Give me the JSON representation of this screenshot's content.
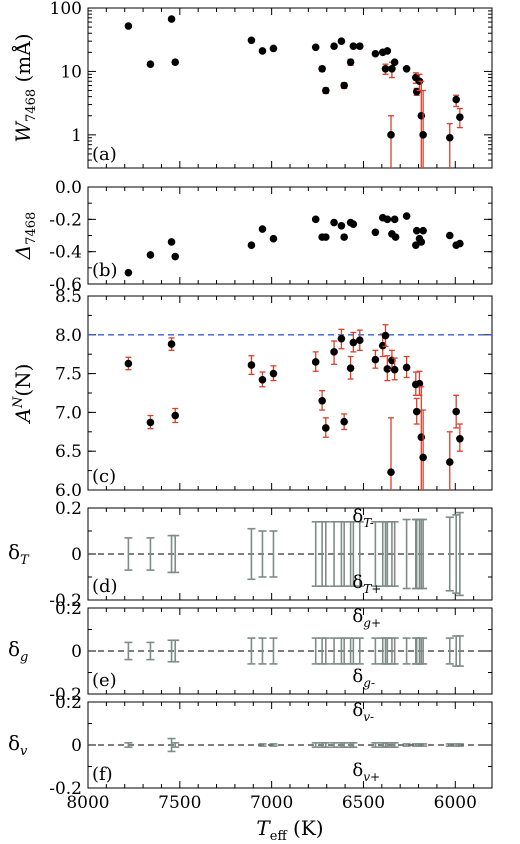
{
  "chart_data": {
    "type": "scatter",
    "figure": {
      "xlabel_main": "T",
      "xlabel_sub": "eff",
      "xlabel_unit": " (K)",
      "xlim": [
        8000,
        5800
      ],
      "x_ticks": [
        8000,
        7500,
        7000,
        6500,
        6000
      ]
    },
    "panels": [
      {
        "id": "a",
        "label": "(a)",
        "ylabel_main": "W",
        "ylabel_sub": "7468",
        "ylabel_unit": " (mÅ)",
        "scale": "log",
        "ylim": [
          0.3,
          100
        ],
        "y_ticks": [
          {
            "v": 1,
            "t": "1"
          },
          {
            "v": 10,
            "t": "10"
          },
          {
            "v": 100,
            "t": "100"
          }
        ],
        "points": [
          {
            "x": 7780,
            "y": 52
          },
          {
            "x": 7660,
            "y": 13,
            "ylo": 12,
            "yhi": 14
          },
          {
            "x": 7545,
            "y": 67
          },
          {
            "x": 7525,
            "y": 14,
            "ylo": 13,
            "yhi": 15
          },
          {
            "x": 7110,
            "y": 31
          },
          {
            "x": 7050,
            "y": 21
          },
          {
            "x": 6990,
            "y": 23
          },
          {
            "x": 6760,
            "y": 24
          },
          {
            "x": 6725,
            "y": 11,
            "ylo": 10,
            "yhi": 12
          },
          {
            "x": 6705,
            "y": 5.0,
            "ylo": 4.5,
            "yhi": 5.5
          },
          {
            "x": 6660,
            "y": 25
          },
          {
            "x": 6620,
            "y": 30
          },
          {
            "x": 6605,
            "y": 6.0,
            "ylo": 5.4,
            "yhi": 6.6
          },
          {
            "x": 6570,
            "y": 14,
            "ylo": 12.5,
            "yhi": 15.5
          },
          {
            "x": 6555,
            "y": 25
          },
          {
            "x": 6520,
            "y": 25,
            "ylo": 23,
            "yhi": 27
          },
          {
            "x": 6435,
            "y": 19
          },
          {
            "x": 6395,
            "y": 20
          },
          {
            "x": 6380,
            "y": 11,
            "ylo": 9,
            "yhi": 13
          },
          {
            "x": 6370,
            "y": 21
          },
          {
            "x": 6350,
            "y": 1.0,
            "ylo": 0.15,
            "yhi": 2
          },
          {
            "x": 6345,
            "y": 11,
            "ylo": 8,
            "yhi": 14
          },
          {
            "x": 6330,
            "y": 14
          },
          {
            "x": 6265,
            "y": 11
          },
          {
            "x": 6215,
            "y": 8,
            "ylo": 6.5,
            "yhi": 9.5
          },
          {
            "x": 6210,
            "y": 4.8,
            "ylo": 4.2,
            "yhi": 5.4
          },
          {
            "x": 6195,
            "y": 7,
            "ylo": 5,
            "yhi": 9
          },
          {
            "x": 6185,
            "y": 2.0,
            "ylo": 0.15,
            "yhi": 7
          },
          {
            "x": 6175,
            "y": 1.0,
            "ylo": 0.15,
            "yhi": 5
          },
          {
            "x": 6030,
            "y": 0.9,
            "ylo": 0.3,
            "yhi": 1.5
          },
          {
            "x": 5995,
            "y": 3.6,
            "ylo": 2.8,
            "yhi": 4.2
          },
          {
            "x": 5975,
            "y": 1.9,
            "ylo": 1.3,
            "yhi": 2.6
          }
        ]
      },
      {
        "id": "b",
        "label": "(b)",
        "ylabel_main": "Δ",
        "ylabel_sub": "7468",
        "ylabel_unit": "",
        "scale": "linear",
        "ylim": [
          -0.6,
          0.0
        ],
        "y_ticks": [
          {
            "v": -0.6,
            "t": "-0.6"
          },
          {
            "v": -0.4,
            "t": "-0.4"
          },
          {
            "v": -0.2,
            "t": "-0.2"
          },
          {
            "v": 0.0,
            "t": "0.0"
          }
        ],
        "points": [
          {
            "x": 7780,
            "y": -0.53
          },
          {
            "x": 7660,
            "y": -0.42
          },
          {
            "x": 7545,
            "y": -0.34
          },
          {
            "x": 7525,
            "y": -0.43
          },
          {
            "x": 7110,
            "y": -0.36
          },
          {
            "x": 7050,
            "y": -0.26
          },
          {
            "x": 6990,
            "y": -0.32
          },
          {
            "x": 6760,
            "y": -0.2
          },
          {
            "x": 6725,
            "y": -0.31
          },
          {
            "x": 6705,
            "y": -0.31
          },
          {
            "x": 6660,
            "y": -0.22
          },
          {
            "x": 6620,
            "y": -0.24
          },
          {
            "x": 6605,
            "y": -0.31
          },
          {
            "x": 6570,
            "y": -0.22
          },
          {
            "x": 6555,
            "y": -0.23
          },
          {
            "x": 6435,
            "y": -0.28
          },
          {
            "x": 6395,
            "y": -0.19
          },
          {
            "x": 6370,
            "y": -0.2
          },
          {
            "x": 6345,
            "y": -0.29
          },
          {
            "x": 6330,
            "y": -0.2
          },
          {
            "x": 6325,
            "y": -0.31
          },
          {
            "x": 6265,
            "y": -0.18
          },
          {
            "x": 6215,
            "y": -0.36
          },
          {
            "x": 6210,
            "y": -0.27
          },
          {
            "x": 6195,
            "y": -0.32
          },
          {
            "x": 6185,
            "y": -0.34
          },
          {
            "x": 6175,
            "y": -0.27
          },
          {
            "x": 6030,
            "y": -0.3
          },
          {
            "x": 5995,
            "y": -0.36
          },
          {
            "x": 5975,
            "y": -0.35
          }
        ]
      },
      {
        "id": "c",
        "label": "(c)",
        "ylabel_main": "A",
        "ylabel_sup": "N",
        "ylabel_unit": "(N)",
        "scale": "linear",
        "ylim": [
          6.0,
          8.5
        ],
        "reference_line": 8.0,
        "reference_color": "#3a5fd6",
        "y_ticks": [
          {
            "v": 6.0,
            "t": "6.0"
          },
          {
            "v": 6.5,
            "t": "6.5"
          },
          {
            "v": 7.0,
            "t": "7.0"
          },
          {
            "v": 7.5,
            "t": "7.5"
          },
          {
            "v": 8.0,
            "t": "8.0"
          },
          {
            "v": 8.5,
            "t": "8.5"
          }
        ],
        "points": [
          {
            "x": 7780,
            "y": 7.63,
            "ylo": 7.55,
            "yhi": 7.71
          },
          {
            "x": 7660,
            "y": 6.87,
            "ylo": 6.79,
            "yhi": 6.96
          },
          {
            "x": 7545,
            "y": 7.88,
            "ylo": 7.8,
            "yhi": 7.96
          },
          {
            "x": 7525,
            "y": 6.96,
            "ylo": 6.87,
            "yhi": 7.05
          },
          {
            "x": 7110,
            "y": 7.61,
            "ylo": 7.49,
            "yhi": 7.73
          },
          {
            "x": 7050,
            "y": 7.42,
            "ylo": 7.33,
            "yhi": 7.52
          },
          {
            "x": 6990,
            "y": 7.5,
            "ylo": 7.41,
            "yhi": 7.6
          },
          {
            "x": 6760,
            "y": 7.65,
            "ylo": 7.53,
            "yhi": 7.78
          },
          {
            "x": 6725,
            "y": 7.15,
            "ylo": 7.03,
            "yhi": 7.28
          },
          {
            "x": 6705,
            "y": 6.8,
            "ylo": 6.68,
            "yhi": 6.93
          },
          {
            "x": 6660,
            "y": 7.78,
            "ylo": 7.62,
            "yhi": 7.92
          },
          {
            "x": 6620,
            "y": 7.95,
            "ylo": 7.82,
            "yhi": 8.07
          },
          {
            "x": 6605,
            "y": 6.88,
            "ylo": 6.78,
            "yhi": 6.98
          },
          {
            "x": 6570,
            "y": 7.57,
            "ylo": 7.43,
            "yhi": 7.72
          },
          {
            "x": 6555,
            "y": 7.9,
            "ylo": 7.78,
            "yhi": 8.03
          },
          {
            "x": 6520,
            "y": 7.93,
            "ylo": 7.8,
            "yhi": 8.06
          },
          {
            "x": 6435,
            "y": 7.68,
            "ylo": 7.57,
            "yhi": 7.8
          },
          {
            "x": 6395,
            "y": 7.86,
            "ylo": 7.72,
            "yhi": 8.01
          },
          {
            "x": 6380,
            "y": 7.99,
            "ylo": 7.85,
            "yhi": 8.13
          },
          {
            "x": 6370,
            "y": 7.56,
            "ylo": 7.41,
            "yhi": 7.73
          },
          {
            "x": 6350,
            "y": 6.23,
            "ylo": 6.0,
            "yhi": 6.93
          },
          {
            "x": 6345,
            "y": 7.67,
            "ylo": 7.55,
            "yhi": 7.8
          },
          {
            "x": 6330,
            "y": 7.55,
            "ylo": 7.42,
            "yhi": 7.7
          },
          {
            "x": 6265,
            "y": 7.58,
            "ylo": 7.45,
            "yhi": 7.72
          },
          {
            "x": 6215,
            "y": 7.36,
            "ylo": 7.22,
            "yhi": 7.52
          },
          {
            "x": 6210,
            "y": 7.01,
            "ylo": 6.85,
            "yhi": 7.18
          },
          {
            "x": 6195,
            "y": 7.37,
            "ylo": 7.22,
            "yhi": 7.53
          },
          {
            "x": 6185,
            "y": 6.68,
            "ylo": 6.0,
            "yhi": 7.33
          },
          {
            "x": 6175,
            "y": 6.42,
            "ylo": 6.0,
            "yhi": 7.03
          },
          {
            "x": 6030,
            "y": 6.36,
            "ylo": 6.0,
            "yhi": 6.75
          },
          {
            "x": 5995,
            "y": 7.01,
            "ylo": 6.8,
            "yhi": 7.22
          },
          {
            "x": 5975,
            "y": 6.66,
            "ylo": 6.5,
            "yhi": 6.85
          }
        ]
      },
      {
        "id": "d",
        "label": "(d)",
        "ylabel_main": "δ",
        "ylabel_sub": "T",
        "scale": "linear",
        "ylim": [
          -0.2,
          0.2
        ],
        "y_ticks": [
          {
            "v": -0.2,
            "t": "-0.2"
          },
          {
            "v": 0,
            "t": "0"
          },
          {
            "v": 0.2,
            "t": "0.2"
          }
        ],
        "annot_upper": {
          "main": "δ",
          "sub": "T-"
        },
        "annot_lower": {
          "main": "δ",
          "sub": "T+"
        },
        "ranges": [
          {
            "x": 7780,
            "h": 0.07
          },
          {
            "x": 7660,
            "h": 0.07
          },
          {
            "x": 7545,
            "h": 0.08
          },
          {
            "x": 7525,
            "h": 0.08
          },
          {
            "x": 7110,
            "h": 0.11
          },
          {
            "x": 7050,
            "h": 0.1
          },
          {
            "x": 6990,
            "h": 0.1
          },
          {
            "x": 6760,
            "h": 0.14
          },
          {
            "x": 6725,
            "h": 0.14
          },
          {
            "x": 6705,
            "h": 0.14
          },
          {
            "x": 6660,
            "h": 0.14
          },
          {
            "x": 6620,
            "h": 0.14
          },
          {
            "x": 6605,
            "h": 0.14
          },
          {
            "x": 6570,
            "h": 0.14
          },
          {
            "x": 6555,
            "h": 0.14
          },
          {
            "x": 6520,
            "h": 0.14
          },
          {
            "x": 6435,
            "h": 0.14
          },
          {
            "x": 6395,
            "h": 0.14
          },
          {
            "x": 6380,
            "h": 0.14
          },
          {
            "x": 6370,
            "h": 0.14
          },
          {
            "x": 6345,
            "h": 0.14
          },
          {
            "x": 6330,
            "h": 0.14
          },
          {
            "x": 6265,
            "h": 0.15
          },
          {
            "x": 6215,
            "h": 0.15
          },
          {
            "x": 6210,
            "h": 0.15
          },
          {
            "x": 6195,
            "h": 0.15
          },
          {
            "x": 6185,
            "h": 0.15
          },
          {
            "x": 6175,
            "h": 0.15
          },
          {
            "x": 6030,
            "h": 0.16
          },
          {
            "x": 5995,
            "h": 0.17
          },
          {
            "x": 5975,
            "h": 0.18
          }
        ]
      },
      {
        "id": "e",
        "label": "(e)",
        "ylabel_main": "δ",
        "ylabel_sub": "g",
        "scale": "linear",
        "ylim": [
          -0.2,
          0.2
        ],
        "y_ticks": [
          {
            "v": -0.2,
            "t": "-0.2"
          },
          {
            "v": 0,
            "t": "0"
          },
          {
            "v": 0.2,
            "t": "0.2"
          }
        ],
        "annot_upper": {
          "main": "δ",
          "sub": "g+"
        },
        "annot_lower": {
          "main": "δ",
          "sub": "g-"
        },
        "ranges": [
          {
            "x": 7780,
            "h": 0.04
          },
          {
            "x": 7660,
            "h": 0.04
          },
          {
            "x": 7545,
            "h": 0.05
          },
          {
            "x": 7525,
            "h": 0.05
          },
          {
            "x": 7110,
            "h": 0.06
          },
          {
            "x": 7050,
            "h": 0.06
          },
          {
            "x": 6990,
            "h": 0.06
          },
          {
            "x": 6760,
            "h": 0.06
          },
          {
            "x": 6725,
            "h": 0.06
          },
          {
            "x": 6705,
            "h": 0.06
          },
          {
            "x": 6660,
            "h": 0.06
          },
          {
            "x": 6620,
            "h": 0.06
          },
          {
            "x": 6605,
            "h": 0.06
          },
          {
            "x": 6570,
            "h": 0.06
          },
          {
            "x": 6555,
            "h": 0.06
          },
          {
            "x": 6520,
            "h": 0.06
          },
          {
            "x": 6435,
            "h": 0.06
          },
          {
            "x": 6395,
            "h": 0.06
          },
          {
            "x": 6380,
            "h": 0.06
          },
          {
            "x": 6370,
            "h": 0.06
          },
          {
            "x": 6345,
            "h": 0.06
          },
          {
            "x": 6330,
            "h": 0.06
          },
          {
            "x": 6265,
            "h": 0.06
          },
          {
            "x": 6215,
            "h": 0.06
          },
          {
            "x": 6210,
            "h": 0.06
          },
          {
            "x": 6195,
            "h": 0.06
          },
          {
            "x": 6185,
            "h": 0.06
          },
          {
            "x": 6175,
            "h": 0.06
          },
          {
            "x": 6030,
            "h": 0.06
          },
          {
            "x": 5995,
            "h": 0.07
          },
          {
            "x": 5975,
            "h": 0.07
          }
        ]
      },
      {
        "id": "f",
        "label": "(f)",
        "ylabel_main": "δ",
        "ylabel_sub": "v",
        "scale": "linear",
        "ylim": [
          -0.2,
          0.2
        ],
        "y_ticks": [
          {
            "v": -0.2,
            "t": "-0.2"
          },
          {
            "v": 0,
            "t": "0"
          },
          {
            "v": 0.2,
            "t": "0.2"
          }
        ],
        "annot_upper": {
          "main": "δ",
          "sub": "v-"
        },
        "annot_lower": {
          "main": "δ",
          "sub": "v+"
        },
        "ranges": [
          {
            "x": 7780,
            "h": 0.01
          },
          {
            "x": 7545,
            "h": 0.03
          },
          {
            "x": 7525,
            "h": 0.01
          },
          {
            "x": 7050,
            "h": 0.005
          },
          {
            "x": 6990,
            "h": 0.005
          },
          {
            "x": 6760,
            "h": 0.01
          },
          {
            "x": 6725,
            "h": 0.01
          },
          {
            "x": 6705,
            "h": 0.01
          },
          {
            "x": 6660,
            "h": 0.01
          },
          {
            "x": 6620,
            "h": 0.01
          },
          {
            "x": 6605,
            "h": 0.01
          },
          {
            "x": 6570,
            "h": 0.01
          },
          {
            "x": 6555,
            "h": 0.01
          },
          {
            "x": 6435,
            "h": 0.01
          },
          {
            "x": 6395,
            "h": 0.01
          },
          {
            "x": 6380,
            "h": 0.01
          },
          {
            "x": 6370,
            "h": 0.01
          },
          {
            "x": 6345,
            "h": 0.01
          },
          {
            "x": 6330,
            "h": 0.01
          },
          {
            "x": 6265,
            "h": 0.005
          },
          {
            "x": 6215,
            "h": 0.005
          },
          {
            "x": 6195,
            "h": 0.005
          },
          {
            "x": 6175,
            "h": 0.005
          },
          {
            "x": 6030,
            "h": 0.005
          },
          {
            "x": 5995,
            "h": 0.005
          },
          {
            "x": 5975,
            "h": 0.005
          }
        ]
      }
    ],
    "colors": {
      "marker": "#000000",
      "error_bar": "#d9412b",
      "range_bar": "#7f8c88",
      "zero_line": "#333333"
    }
  }
}
